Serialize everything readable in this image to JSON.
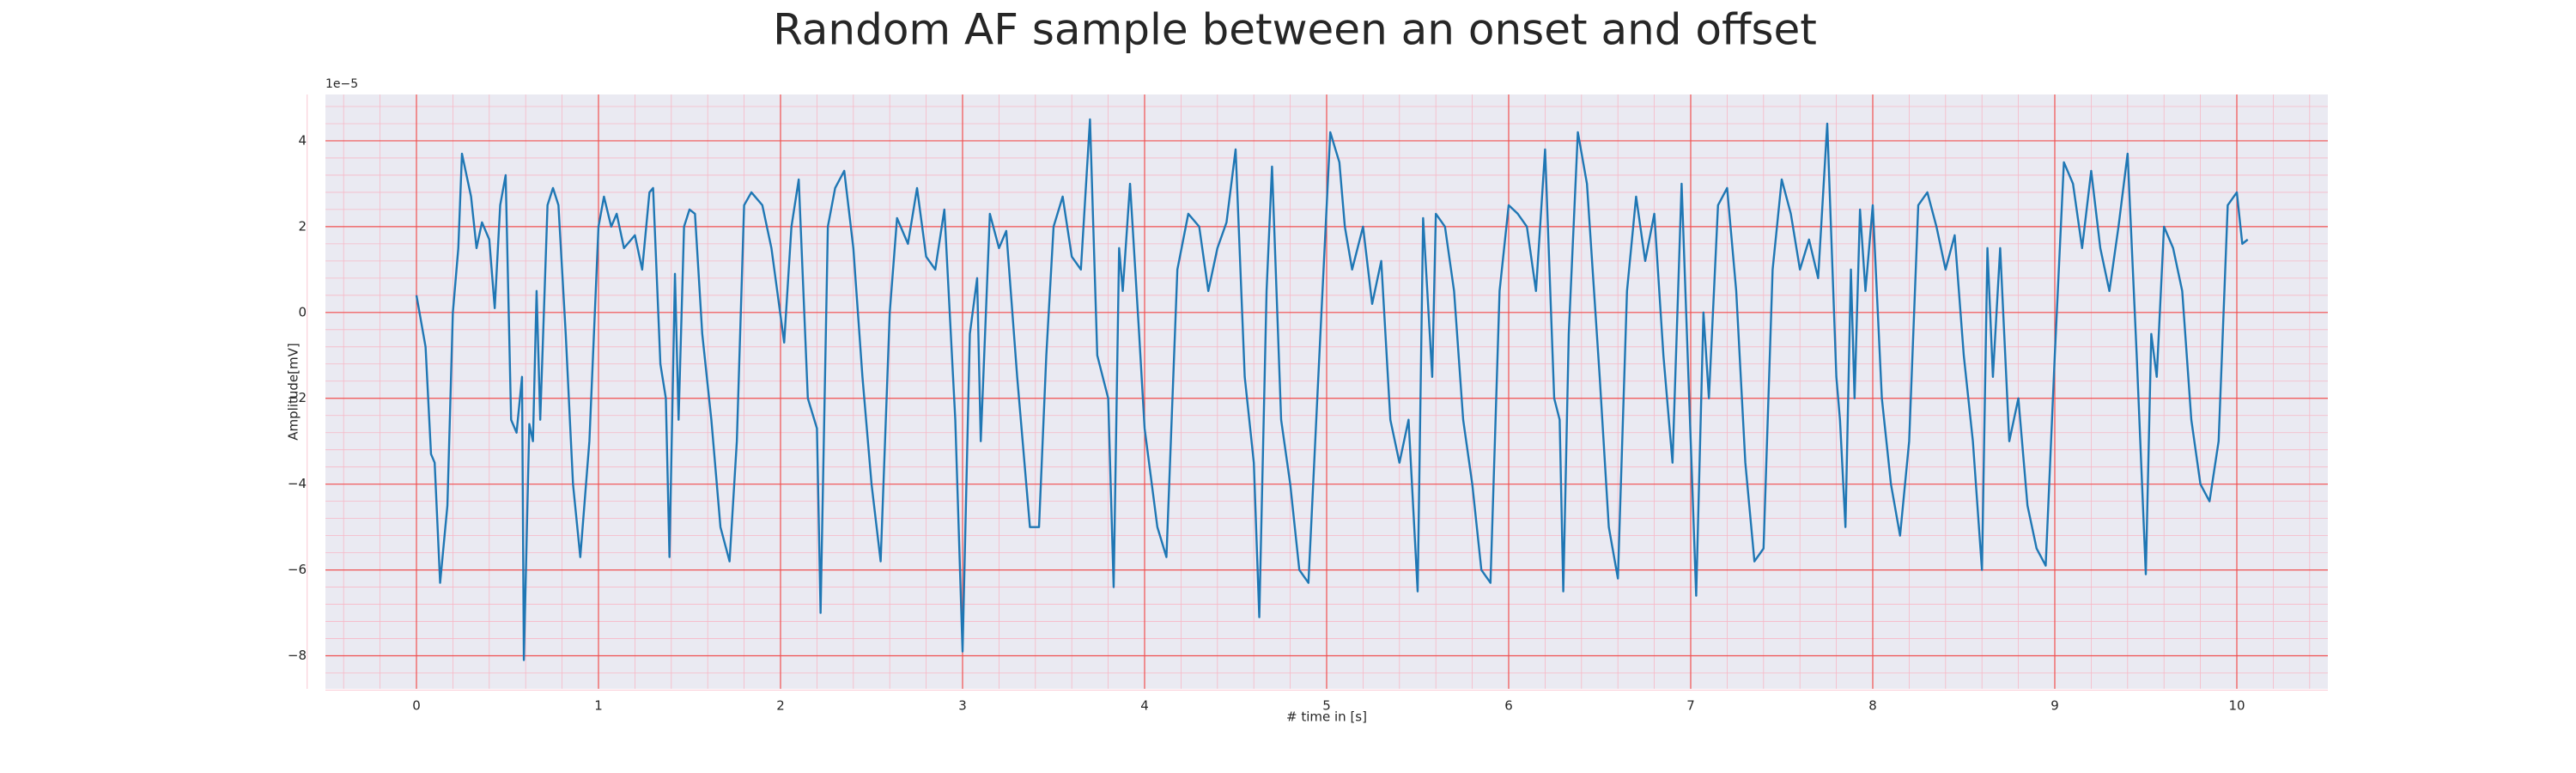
{
  "chart_data": {
    "type": "line",
    "title": "Random AF sample between an onset and offset",
    "xlabel": "# time in [s]",
    "ylabel": "Amplitude[mV]",
    "y_offset_label": "1e−5",
    "color": "#1f77b4",
    "grid": true,
    "minor_grid": true,
    "xlim": [
      -0.5,
      10.5
    ],
    "ylim": [
      -8.77,
      5.08
    ],
    "xticks": [
      0,
      1,
      2,
      3,
      4,
      5,
      6,
      7,
      8,
      9,
      10
    ],
    "yticks": [
      {
        "value": -8,
        "label": "−8"
      },
      {
        "value": -6,
        "label": "−6"
      },
      {
        "value": -4,
        "label": "−4"
      },
      {
        "value": -2,
        "label": "−2"
      },
      0,
      2,
      4
    ],
    "x": [
      0,
      0.05,
      0.08,
      0.1,
      0.13,
      0.17,
      0.2,
      0.23,
      0.25,
      0.3,
      0.33,
      0.36,
      0.4,
      0.43,
      0.46,
      0.49,
      0.52,
      0.55,
      0.58,
      0.59,
      0.62,
      0.64,
      0.66,
      0.68,
      0.72,
      0.75,
      0.78,
      0.82,
      0.86,
      0.9,
      0.95,
      1.0,
      1.03,
      1.07,
      1.1,
      1.14,
      1.2,
      1.24,
      1.28,
      1.3,
      1.34,
      1.37,
      1.39,
      1.42,
      1.44,
      1.47,
      1.5,
      1.53,
      1.57,
      1.62,
      1.67,
      1.72,
      1.76,
      1.8,
      1.84,
      1.9,
      1.95,
      2.02,
      2.06,
      2.1,
      2.15,
      2.2,
      2.22,
      2.26,
      2.3,
      2.35,
      2.4,
      2.45,
      2.5,
      2.55,
      2.6,
      2.64,
      2.7,
      2.75,
      2.8,
      2.85,
      2.9,
      2.96,
      3.0,
      3.04,
      3.08,
      3.1,
      3.15,
      3.2,
      3.24,
      3.3,
      3.37,
      3.42,
      3.46,
      3.5,
      3.55,
      3.6,
      3.65,
      3.7,
      3.74,
      3.8,
      3.83,
      3.86,
      3.88,
      3.92,
      3.97,
      4.0,
      4.07,
      4.12,
      4.18,
      4.24,
      4.3,
      4.35,
      4.4,
      4.45,
      4.5,
      4.55,
      4.6,
      4.63,
      4.67,
      4.7,
      4.75,
      4.8,
      4.85,
      4.9,
      4.96,
      5.02,
      5.07,
      5.1,
      5.14,
      5.2,
      5.25,
      5.3,
      5.35,
      5.4,
      5.45,
      5.5,
      5.53,
      5.58,
      5.6,
      5.65,
      5.7,
      5.75,
      5.8,
      5.85,
      5.9,
      5.95,
      6.0,
      6.05,
      6.1,
      6.15,
      6.2,
      6.25,
      6.28,
      6.3,
      6.33,
      6.38,
      6.43,
      6.5,
      6.55,
      6.6,
      6.65,
      6.7,
      6.75,
      6.8,
      6.85,
      6.9,
      6.95,
      7.0,
      7.03,
      7.07,
      7.1,
      7.15,
      7.2,
      7.25,
      7.3,
      7.35,
      7.4,
      7.45,
      7.5,
      7.55,
      7.6,
      7.65,
      7.7,
      7.75,
      7.8,
      7.82,
      7.85,
      7.88,
      7.9,
      7.93,
      7.96,
      8.0,
      8.05,
      8.1,
      8.15,
      8.2,
      8.25,
      8.3,
      8.35,
      8.4,
      8.45,
      8.5,
      8.55,
      8.6,
      8.63,
      8.66,
      8.7,
      8.75,
      8.8,
      8.85,
      8.9,
      8.95,
      9.0,
      9.05,
      9.1,
      9.15,
      9.2,
      9.25,
      9.3,
      9.35,
      9.4,
      9.45,
      9.5,
      9.53,
      9.56,
      9.6,
      9.65,
      9.7,
      9.75,
      9.8,
      9.85,
      9.9,
      9.95,
      10.0,
      10.03,
      10.06
    ],
    "values": [
      0.4,
      -0.8,
      -3.3,
      -3.5,
      -6.3,
      -4.5,
      0,
      1.5,
      3.7,
      2.7,
      1.5,
      2.1,
      1.7,
      0.1,
      2.5,
      3.2,
      -2.5,
      -2.8,
      -1.5,
      -8.1,
      -2.6,
      -3.0,
      0.5,
      -2.5,
      2.5,
      2.9,
      2.5,
      -0.5,
      -4,
      -5.7,
      -3,
      2.0,
      2.7,
      2.0,
      2.3,
      1.5,
      1.8,
      1.0,
      2.8,
      2.9,
      -1.2,
      -2.0,
      -5.7,
      0.9,
      -2.5,
      2.0,
      2.4,
      2.3,
      -0.5,
      -2.5,
      -5.0,
      -5.8,
      -3.0,
      2.5,
      2.8,
      2.5,
      1.5,
      -0.7,
      2.0,
      3.1,
      -2.0,
      -2.7,
      -7.0,
      2.0,
      2.9,
      3.3,
      1.5,
      -1.5,
      -4.0,
      -5.8,
      0,
      2.2,
      1.6,
      2.9,
      1.3,
      1.0,
      2.4,
      -2.5,
      -7.9,
      -0.5,
      0.8,
      -3.0,
      2.3,
      1.5,
      1.9,
      -1.5,
      -5.0,
      -5.0,
      -1.0,
      2.0,
      2.7,
      1.3,
      1.0,
      4.5,
      -1.0,
      -2.0,
      -6.4,
      1.5,
      0.5,
      3.0,
      -0.5,
      -2.7,
      -5.0,
      -5.7,
      1.0,
      2.3,
      2.0,
      0.5,
      1.5,
      2.1,
      3.8,
      -1.5,
      -3.5,
      -7.1,
      0.5,
      3.4,
      -2.5,
      -4.0,
      -6.0,
      -6.3,
      -1.0,
      4.2,
      3.5,
      2.0,
      1.0,
      2.0,
      0.2,
      1.2,
      -2.5,
      -3.5,
      -2.5,
      -6.5,
      2.2,
      -1.5,
      2.3,
      2.0,
      0.5,
      -2.5,
      -4.0,
      -6.0,
      -6.3,
      0.5,
      2.5,
      2.3,
      2.0,
      0.5,
      3.8,
      -2.0,
      -2.5,
      -6.5,
      -0.5,
      4.2,
      3.0,
      -1.5,
      -5.0,
      -6.2,
      0.5,
      2.7,
      1.2,
      2.3,
      -1.0,
      -3.5,
      3.0,
      -3.0,
      -6.6,
      0,
      -2.0,
      2.5,
      2.9,
      0.5,
      -3.5,
      -5.8,
      -5.5,
      1.0,
      3.1,
      2.3,
      1.0,
      1.7,
      0.8,
      4.4,
      -1.5,
      -2.5,
      -5.0,
      1.0,
      -2.0,
      2.4,
      0.5,
      2.5,
      -2.0,
      -4.0,
      -5.2,
      -3.0,
      2.5,
      2.8,
      2.0,
      1.0,
      1.8,
      -1.0,
      -3.0,
      -6.0,
      1.5,
      -1.5,
      1.5,
      -3.0,
      -2.0,
      -4.5,
      -5.5,
      -5.9,
      -1.0,
      3.5,
      3.0,
      1.5,
      3.3,
      1.5,
      0.5,
      2.0,
      3.7,
      -1.0,
      -6.1,
      -0.5,
      -1.5,
      2.0,
      1.5,
      0.5,
      -2.5,
      -4.0,
      -4.4,
      -3.0,
      2.5,
      2.8,
      1.6,
      1.7
    ]
  }
}
